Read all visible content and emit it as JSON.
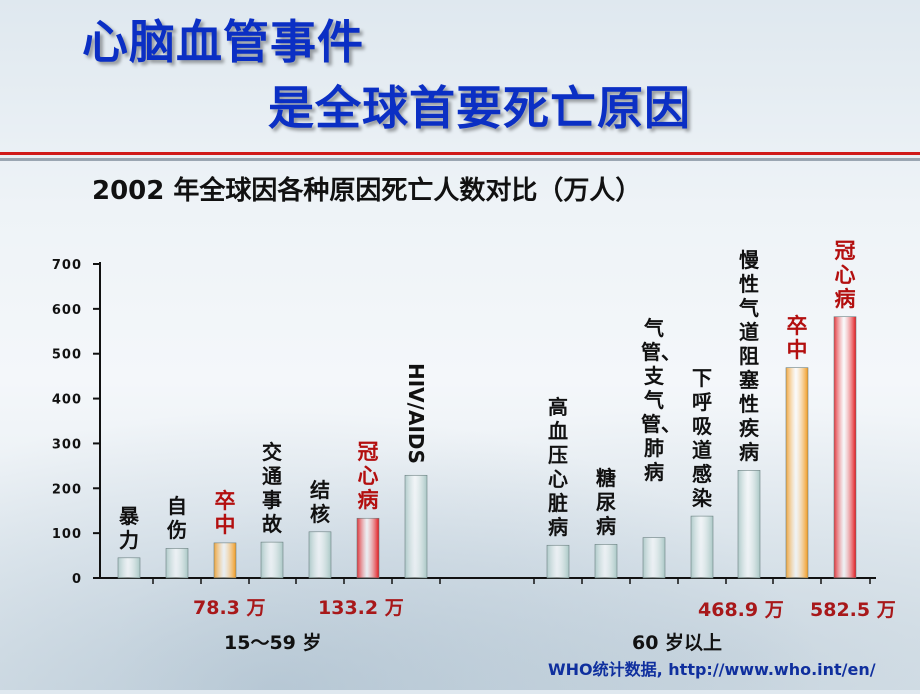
{
  "slide": {
    "title_line1": "心脑血管事件",
    "title_line2": "是全球首要死亡原因",
    "source": "WHO统计数据, http://www.who.int/en/"
  },
  "colors": {
    "normal_bar": "#a9c7c5",
    "stroke_bar": "#f29a1e",
    "chd_bar": "#e2161b",
    "hiv_bar": "#a9c7c5"
  },
  "chart_data": {
    "type": "bar",
    "title": "2002 年全球因各种原因死亡人数对比（万人）",
    "ylim": [
      0,
      700
    ],
    "yticks": [
      0,
      100,
      200,
      300,
      400,
      500,
      600,
      700
    ],
    "ytick_labels": [
      "0",
      "100",
      "200",
      "300",
      "400",
      "500",
      "600",
      "700"
    ],
    "grid": false,
    "groups": [
      {
        "label": "15～59 岁",
        "bars": [
          {
            "category": "暴力",
            "value": 45,
            "kind": "normal"
          },
          {
            "category": "自伤",
            "value": 66,
            "kind": "normal"
          },
          {
            "category": "卒中",
            "value": 78.3,
            "kind": "stroke",
            "value_label": "78.3 万"
          },
          {
            "category": "交通事故",
            "value": 80,
            "kind": "normal"
          },
          {
            "category": "结核",
            "value": 103,
            "kind": "normal"
          },
          {
            "category": "冠心病",
            "value": 133.2,
            "kind": "chd",
            "value_label": "133.2 万"
          },
          {
            "category": "HIV/AIDS",
            "value": 229,
            "kind": "normal"
          }
        ]
      },
      {
        "label": "60 岁以上",
        "bars": [
          {
            "category": "高血压心脏病",
            "value": 73,
            "kind": "normal"
          },
          {
            "category": "糖尿病",
            "value": 75,
            "kind": "normal"
          },
          {
            "category": "气管、支气管、肺病",
            "value": 90,
            "kind": "normal"
          },
          {
            "category": "下呼吸道感染",
            "value": 138,
            "kind": "normal"
          },
          {
            "category": "慢性气道阻塞性疾病",
            "value": 240,
            "kind": "normal"
          },
          {
            "category": "卒中",
            "value": 468.9,
            "kind": "stroke",
            "value_label": "468.9 万"
          },
          {
            "category": "冠心病",
            "value": 582.5,
            "kind": "chd",
            "value_label": "582.5 万"
          }
        ]
      }
    ]
  }
}
